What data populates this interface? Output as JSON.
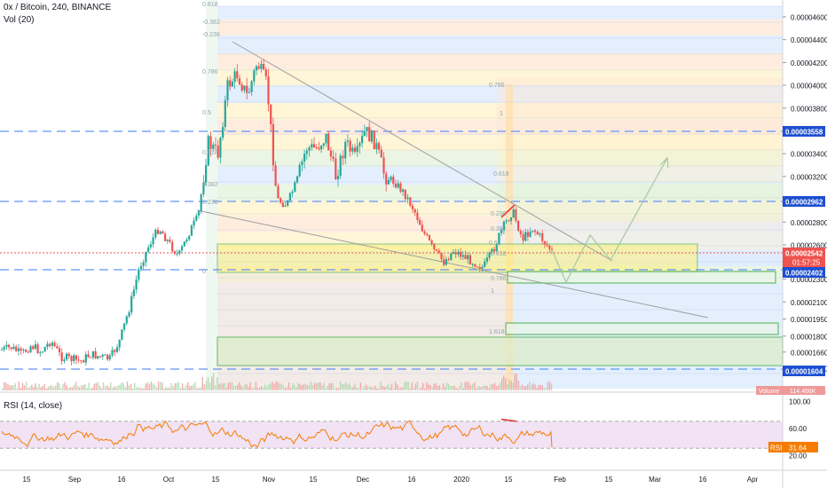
{
  "header": {
    "symbol_line": "0x / Bitcoin, 240, BINANCE",
    "volume_label": "Vol (20)"
  },
  "rsi_panel": {
    "title": "RSI (14, close)",
    "value_tag": "RSI",
    "value": "31.64"
  },
  "volume_tag": {
    "label": "Volume",
    "value": "114.466K"
  },
  "countdown": "01:57:25",
  "price_tags": [
    {
      "name": "level-tag-3558",
      "value": "0.00003558"
    },
    {
      "name": "level-tag-2962",
      "value": "0.00002962"
    },
    {
      "name": "last-price-tag",
      "value": "0.00002542"
    },
    {
      "name": "level-tag-2402",
      "value": "0.00002402"
    },
    {
      "name": "level-tag-1604",
      "value": "0.00001604"
    }
  ],
  "fib_labels": [
    "0.618",
    "-0.382",
    "-0.236",
    "0.786",
    "0.5",
    "0.618",
    "0.382",
    "0.236",
    "0",
    "0.786",
    "1",
    "0.618",
    "0.236",
    "0.382",
    "0.5",
    "0.618",
    "0.786",
    "1",
    "1.618"
  ],
  "colors": {
    "up": "#26a69a",
    "down": "#ef5350",
    "price_line": "#ef5350",
    "level_line": "#5b8ff9",
    "rsi_line": "#f57c00",
    "rsi_band": "#e1bee7",
    "zone_fill": "#fff176",
    "zone_border": "#66bb6a",
    "tag_blue": "#1e4fd1",
    "tag_red": "#ef5350",
    "tag_orange": "#f57c00"
  },
  "chart_data": {
    "type": "candlestick",
    "timeframe": "240",
    "exchange": "BINANCE",
    "y_axis_ticks": [
      "0.00004600",
      "0.00004400",
      "0.00004200",
      "0.00004000",
      "0.00003800",
      "0.00003400",
      "0.00003200",
      "0.00002800",
      "0.00002600",
      "0.00002300",
      "0.00002100",
      "0.00001950",
      "0.00001800",
      "0.00001660",
      "0.00001520"
    ],
    "x_axis_ticks": [
      "15",
      "Sep",
      "16",
      "Oct",
      "15",
      "Nov",
      "15",
      "Dec",
      "16",
      "2020",
      "15",
      "Feb",
      "15",
      "Mar",
      "16",
      "Apr"
    ],
    "horizontal_levels": [
      3.558e-05,
      2.962e-05,
      2.402e-05,
      1.604e-05
    ],
    "last_price": 2.542e-05,
    "close_series": [
      1.68e-05,
      1.7e-05,
      1.64e-05,
      1.72e-05,
      1.66e-05,
      1.76e-05,
      1.62e-05,
      1.6e-05,
      1.58e-05,
      1.64e-05,
      1.62e-05,
      1.6e-05,
      1.76e-05,
      2.05e-05,
      2.4e-05,
      2.6e-05,
      2.75e-05,
      2.62e-05,
      2.5e-05,
      2.7e-05,
      2.85e-05,
      3.5e-05,
      3.4e-05,
      4e-05,
      4.1e-05,
      3.9e-05,
      4.2e-05,
      4e-05,
      3e-05,
      2.95e-05,
      3.15e-05,
      3.45e-05,
      3.45e-05,
      3.55e-05,
      3.2e-05,
      3.5e-05,
      3.35e-05,
      3.6e-05,
      3.5e-05,
      3.2e-05,
      3.15e-05,
      3.05e-05,
      2.9e-05,
      2.7e-05,
      2.55e-05,
      2.45e-05,
      2.55e-05,
      2.5e-05,
      2.45e-05,
      2.4e-05,
      2.55e-05,
      2.75e-05,
      2.9e-05,
      2.65e-05,
      2.75e-05,
      2.65e-05,
      2.542e-05
    ],
    "rsi": {
      "levels": [
        30,
        70
      ],
      "y_axis_ticks": [
        "100.00",
        "60.00",
        "20.00"
      ],
      "last": 31.64
    }
  }
}
